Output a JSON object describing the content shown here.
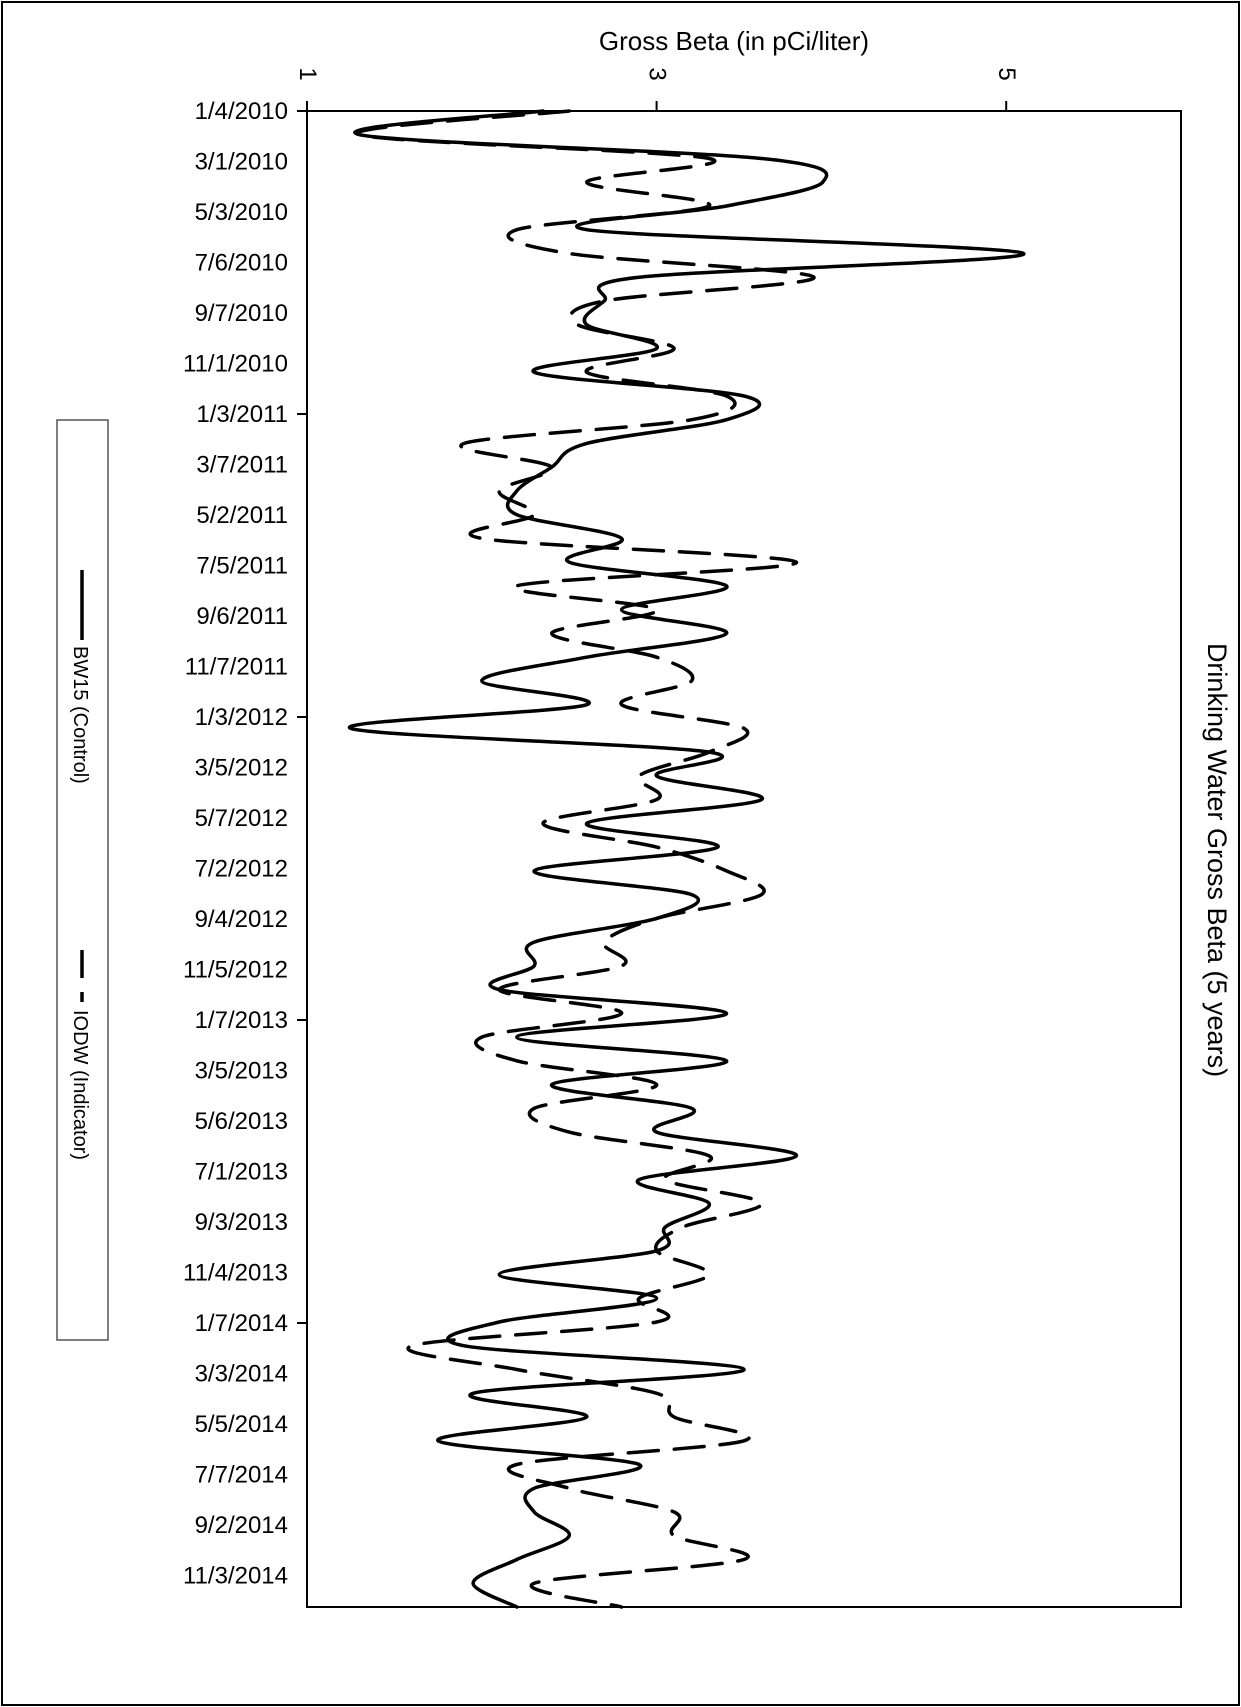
{
  "chart_data": {
    "type": "line",
    "orientation": "rotated-vertical-time-axis",
    "title": "Drinking Water Gross Beta (5 years)",
    "value_axis": {
      "label": "Gross Beta (in pCi/liter)",
      "range": [
        1,
        6
      ],
      "tick_labels": [
        "1",
        "3",
        "5"
      ],
      "tick_values": [
        1,
        3,
        5
      ]
    },
    "time_axis": {
      "tick_labels": [
        "1/4/2010",
        "3/1/2010",
        "5/3/2010",
        "7/6/2010",
        "9/7/2010",
        "11/1/2010",
        "1/3/2011",
        "3/7/2011",
        "5/2/2011",
        "7/5/2011",
        "9/6/2011",
        "11/7/2011",
        "1/3/2012",
        "3/5/2012",
        "5/7/2012",
        "7/2/2012",
        "9/4/2012",
        "11/5/2012",
        "1/7/2013",
        "3/5/2013",
        "5/6/2013",
        "7/1/2013",
        "9/3/2013",
        "11/4/2013",
        "1/7/2014",
        "3/3/2014",
        "5/5/2014",
        "7/7/2014",
        "9/2/2014",
        "11/3/2014"
      ]
    },
    "grid": false,
    "legend": {
      "placement": "left",
      "entries": [
        "BW15 (Control)",
        "IODW (Indicator)"
      ]
    },
    "series": [
      {
        "name": "BW15 (Control)",
        "style": "solid",
        "values": [
          2.35,
          1.3,
          3.6,
          3.95,
          3.4,
          2.6,
          5.1,
          2.9,
          2.7,
          2.6,
          3.0,
          2.3,
          3.5,
          3.4,
          2.6,
          2.4,
          2.2,
          2.2,
          2.8,
          2.5,
          3.4,
          2.8,
          3.4,
          2.6,
          2.0,
          2.6,
          1.25,
          3.3,
          3.0,
          3.6,
          2.6,
          3.35,
          2.3,
          3.2,
          3.0,
          2.3,
          2.3,
          2.1,
          3.4,
          2.2,
          3.4,
          2.4,
          3.2,
          3.0,
          3.8,
          2.9,
          3.3,
          3.05,
          3.0,
          2.1,
          3.0,
          2.1,
          1.9,
          3.5,
          1.95,
          2.6,
          1.75,
          2.9,
          2.3,
          2.3,
          2.5,
          2.2,
          1.95,
          2.2
        ]
      },
      {
        "name": "IODW (Indicator)",
        "style": "dashed",
        "values": [
          2.5,
          1.3,
          3.3,
          2.6,
          3.3,
          2.2,
          2.5,
          3.9,
          2.7,
          2.55,
          3.1,
          2.6,
          3.4,
          3.2,
          1.9,
          2.4,
          2.1,
          2.3,
          2.0,
          3.8,
          2.2,
          3.0,
          2.4,
          3.0,
          3.2,
          2.8,
          3.5,
          3.3,
          2.9,
          3.0,
          2.35,
          3.0,
          3.4,
          3.6,
          3.0,
          2.7,
          2.8,
          2.1,
          2.8,
          2.0,
          2.2,
          3.0,
          2.3,
          2.5,
          3.3,
          3.05,
          3.6,
          3.15,
          3.0,
          3.3,
          2.9,
          3.0,
          1.6,
          2.2,
          3.0,
          3.1,
          3.5,
          2.2,
          2.5,
          3.1,
          3.1,
          3.5,
          2.3,
          2.8
        ]
      }
    ]
  }
}
